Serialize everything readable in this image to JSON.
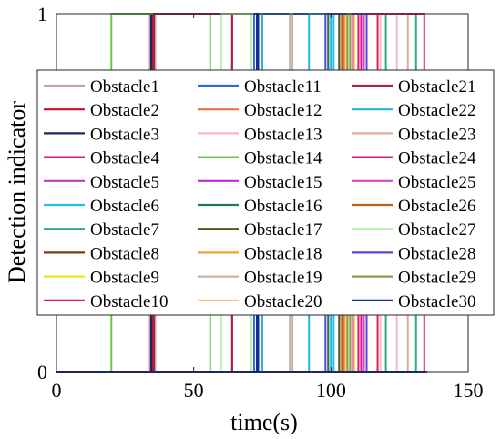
{
  "chart_data": {
    "type": "line",
    "subtype": "step",
    "title": "",
    "xlabel": "time(s)",
    "ylabel": "Detection indicator",
    "xlim": [
      0,
      150
    ],
    "ylim": [
      0,
      1
    ],
    "xticks": [
      "0",
      "50",
      "100",
      "150"
    ],
    "yticks": [
      "0",
      "1"
    ],
    "grid": false,
    "legend_placement": "center, 3 columns",
    "series": [
      {
        "name": "Obstacle1",
        "color": "#c8a0b4",
        "intervals": [
          [
            34.0,
            36.0
          ]
        ]
      },
      {
        "name": "Obstacle2",
        "color": "#c8102e",
        "intervals": [
          [
            35.0,
            64.0
          ]
        ]
      },
      {
        "name": "Obstacle3",
        "color": "#1f2a5a",
        "intervals": [
          [
            34.5,
            35.5
          ]
        ]
      },
      {
        "name": "Obstacle4",
        "color": "#e0128a",
        "intervals": [
          [
            104.0,
            111.0
          ]
        ]
      },
      {
        "name": "Obstacle5",
        "color": "#c03ac8",
        "intervals": [
          [
            108.0,
            113.0
          ]
        ]
      },
      {
        "name": "Obstacle6",
        "color": "#22c0e8",
        "intervals": [
          [
            101.0,
            106.0
          ]
        ]
      },
      {
        "name": "Obstacle7",
        "color": "#2fa88a",
        "intervals": [
          [
            120.0,
            131.0
          ]
        ]
      },
      {
        "name": "Obstacle8",
        "color": "#7a3a10",
        "intervals": [
          [
            103.0,
            110.0
          ]
        ]
      },
      {
        "name": "Obstacle9",
        "color": "#f2e21a",
        "intervals": [
          [
            108.5,
            112.0
          ]
        ]
      },
      {
        "name": "Obstacle10",
        "color": "#e0204a",
        "intervals": [
          [
            104.5,
            117.0
          ]
        ]
      },
      {
        "name": "Obstacle11",
        "color": "#2a6ae0",
        "intervals": [
          [
            72.0,
            99.0
          ]
        ]
      },
      {
        "name": "Obstacle12",
        "color": "#f07040",
        "intervals": [
          [
            100.0,
            105.0
          ]
        ]
      },
      {
        "name": "Obstacle13",
        "color": "#f6b8d0",
        "intervals": [
          [
            118.0,
            124.0
          ]
        ]
      },
      {
        "name": "Obstacle14",
        "color": "#6ac848",
        "intervals": [
          [
            20.0,
            56.0
          ]
        ]
      },
      {
        "name": "Obstacle15",
        "color": "#c028d8",
        "intervals": [
          [
            108.0,
            110.0
          ]
        ]
      },
      {
        "name": "Obstacle16",
        "color": "#1e7a5a",
        "intervals": [
          [
            99.0,
            105.0
          ]
        ]
      },
      {
        "name": "Obstacle17",
        "color": "#4a5a1a",
        "intervals": [
          [
            103.0,
            106.0
          ]
        ]
      },
      {
        "name": "Obstacle18",
        "color": "#f0a030",
        "intervals": [
          [
            105.0,
            113.0
          ]
        ]
      },
      {
        "name": "Obstacle19",
        "color": "#c8b4a0",
        "intervals": [
          [
            85.0,
            86.0
          ]
        ]
      },
      {
        "name": "Obstacle20",
        "color": "#f8c888",
        "intervals": [
          [
            105.5,
            108.0
          ]
        ]
      },
      {
        "name": "Obstacle21",
        "color": "#9a2a4a",
        "intervals": [
          [
            35.5,
            64.0
          ]
        ]
      },
      {
        "name": "Obstacle22",
        "color": "#28b4e0",
        "intervals": [
          [
            73.0,
            75.0
          ],
          [
            92.0,
            100.0
          ]
        ]
      },
      {
        "name": "Obstacle23",
        "color": "#d8b098",
        "intervals": [
          [
            113.0,
            128.0
          ]
        ]
      },
      {
        "name": "Obstacle24",
        "color": "#e81878",
        "intervals": [
          [
            110.0,
            134.0
          ]
        ]
      },
      {
        "name": "Obstacle25",
        "color": "#d848c8",
        "intervals": [
          [
            108.0,
            112.0
          ]
        ]
      },
      {
        "name": "Obstacle26",
        "color": "#b8641c",
        "intervals": [
          [
            104.0,
            107.0
          ]
        ]
      },
      {
        "name": "Obstacle27",
        "color": "#b8f0b0",
        "intervals": [
          [
            60.0,
            71.0
          ]
        ]
      },
      {
        "name": "Obstacle28",
        "color": "#5a4ad0",
        "intervals": [
          [
            98.0,
            113.0
          ]
        ]
      },
      {
        "name": "Obstacle29",
        "color": "#8a9a4a",
        "intervals": [
          [
            106.0,
            107.0
          ]
        ]
      },
      {
        "name": "Obstacle30",
        "color": "#1a2a90",
        "intervals": [
          [
            73.0,
            73.5
          ]
        ]
      }
    ]
  }
}
